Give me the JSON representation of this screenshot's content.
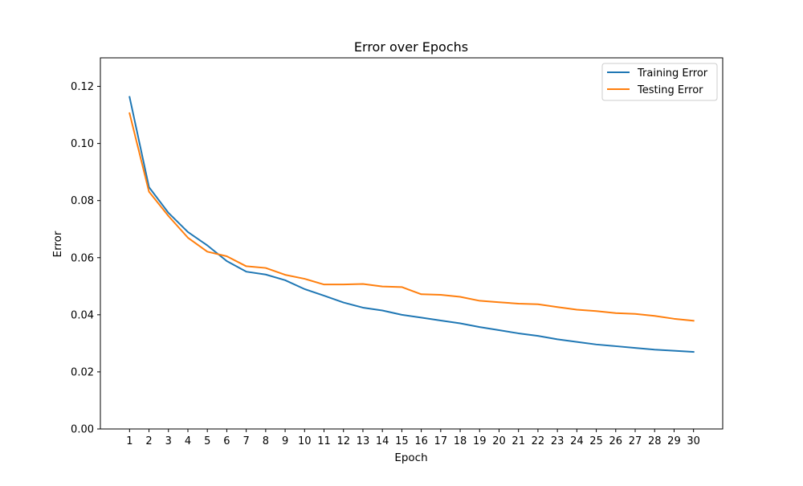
{
  "chart_data": {
    "type": "line",
    "title": "Error over Epochs",
    "xlabel": "Epoch",
    "ylabel": "Error",
    "x": [
      1,
      2,
      3,
      4,
      5,
      6,
      7,
      8,
      9,
      10,
      11,
      12,
      13,
      14,
      15,
      16,
      17,
      18,
      19,
      20,
      21,
      22,
      23,
      24,
      25,
      26,
      27,
      28,
      29,
      30
    ],
    "xticks": [
      "1",
      "2",
      "3",
      "4",
      "5",
      "6",
      "7",
      "8",
      "9",
      "10",
      "11",
      "12",
      "13",
      "14",
      "15",
      "16",
      "17",
      "18",
      "19",
      "20",
      "21",
      "22",
      "23",
      "24",
      "25",
      "26",
      "27",
      "28",
      "29",
      "30"
    ],
    "xlim": [
      -0.5,
      31.5
    ],
    "ylim": [
      0,
      0.13
    ],
    "yticks": [
      "0.00",
      "0.02",
      "0.04",
      "0.06",
      "0.08",
      "0.10",
      "0.12"
    ],
    "grid": false,
    "legend_position": "top-right",
    "series": [
      {
        "name": "Training Error",
        "color": "#1f77b4",
        "values": [
          0.1163,
          0.0847,
          0.0757,
          0.069,
          0.0643,
          0.0588,
          0.0551,
          0.0541,
          0.0521,
          0.049,
          0.0467,
          0.0443,
          0.0425,
          0.0415,
          0.04,
          0.039,
          0.038,
          0.037,
          0.0357,
          0.0346,
          0.0335,
          0.0326,
          0.0314,
          0.0305,
          0.0296,
          0.029,
          0.0284,
          0.0278,
          0.0274,
          0.027
        ]
      },
      {
        "name": "Testing Error",
        "color": "#ff7f0e",
        "values": [
          0.1106,
          0.0831,
          0.0746,
          0.067,
          0.0621,
          0.0605,
          0.057,
          0.0564,
          0.054,
          0.0526,
          0.0506,
          0.0506,
          0.0508,
          0.0499,
          0.0497,
          0.0472,
          0.047,
          0.0463,
          0.0449,
          0.0444,
          0.0439,
          0.0437,
          0.0427,
          0.0418,
          0.0413,
          0.0406,
          0.0403,
          0.0396,
          0.0386,
          0.0379
        ]
      }
    ]
  }
}
